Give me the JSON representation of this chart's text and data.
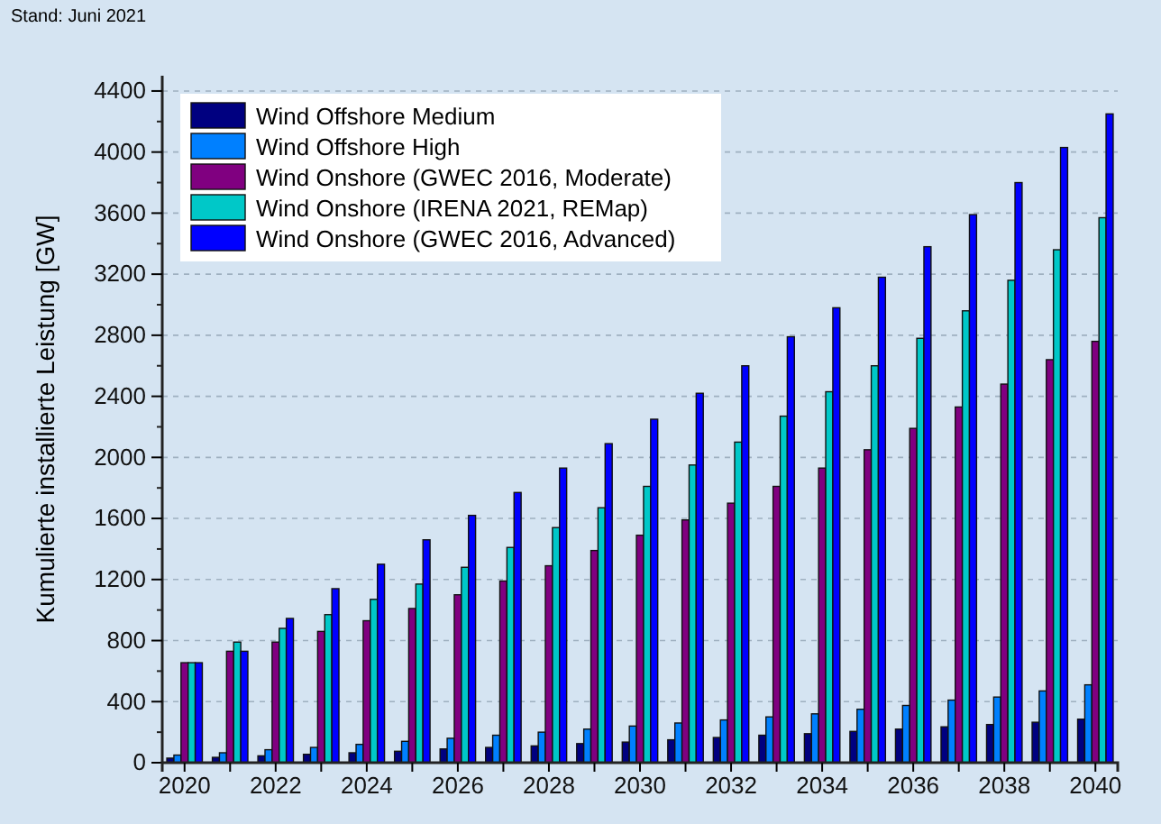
{
  "chart_data": {
    "type": "bar",
    "ylabel": "Kumulierte installierte Leistung [GW]",
    "annotations": [
      "Stand: Juni 2021"
    ],
    "categories": [
      "2020",
      null,
      "2022",
      null,
      "2024",
      null,
      "2026",
      null,
      "2028",
      null,
      "2030",
      null,
      "2032",
      null,
      "2034",
      null,
      "2036",
      null,
      "2038",
      null,
      "2040"
    ],
    "series": [
      {
        "name": "Wind Offshore Medium",
        "color": "#000080",
        "values": [
          30,
          35,
          45,
          55,
          65,
          75,
          90,
          100,
          110,
          125,
          135,
          150,
          165,
          180,
          190,
          205,
          220,
          235,
          250,
          265,
          285
        ]
      },
      {
        "name": "Wind Offshore High",
        "color": "#0080ff",
        "values": [
          50,
          65,
          85,
          100,
          120,
          140,
          160,
          180,
          200,
          220,
          240,
          260,
          280,
          300,
          320,
          350,
          375,
          410,
          430,
          470,
          510
        ]
      },
      {
        "name": "Wind Onshore (GWEC 2016, Moderate)",
        "color": "#800080",
        "values": [
          655,
          730,
          790,
          860,
          930,
          1010,
          1100,
          1190,
          1290,
          1390,
          1490,
          1590,
          1700,
          1810,
          1930,
          2050,
          2190,
          2330,
          2480,
          2640,
          2760
        ]
      },
      {
        "name": "Wind Onshore (IRENA 2021, REMap)",
        "color": "#00c8c8",
        "values": [
          655,
          790,
          880,
          970,
          1070,
          1170,
          1280,
          1410,
          1540,
          1670,
          1810,
          1950,
          2100,
          2270,
          2430,
          2600,
          2780,
          2960,
          3160,
          3360,
          3570
        ]
      },
      {
        "name": "Wind Onshore (GWEC 2016, Advanced)",
        "color": "#0000ff",
        "values": [
          655,
          730,
          945,
          1140,
          1300,
          1460,
          1620,
          1770,
          1930,
          2090,
          2250,
          2420,
          2600,
          2790,
          2980,
          3180,
          3380,
          3590,
          3800,
          4030,
          4250
        ]
      }
    ],
    "ylim": [
      0,
      4500
    ],
    "yticks": [
      0,
      400,
      800,
      1200,
      1600,
      2000,
      2400,
      2800,
      3200,
      3600,
      4000,
      4400
    ],
    "grid": "y",
    "legend": "top left"
  }
}
